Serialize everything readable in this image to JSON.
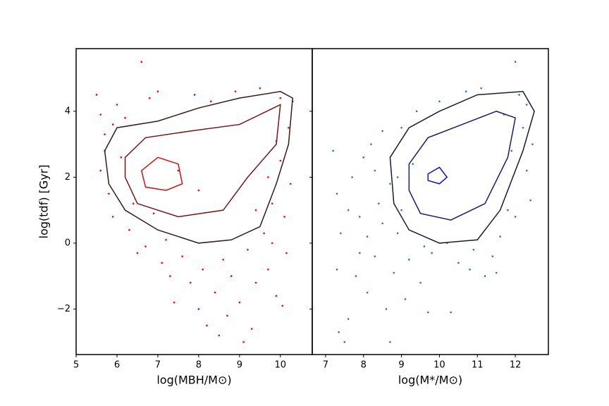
{
  "chart_data": [
    {
      "type": "scatter",
      "xlabel": "log(MBH/M⊙)",
      "ylabel": "log(tdf) [Gyr]",
      "xlim": [
        5,
        10.78
      ],
      "ylim": [
        -3.38,
        5.9
      ],
      "xticks": [
        5,
        6,
        7,
        8,
        9,
        10
      ],
      "yticks": [
        {
          "value": -2,
          "label": "−2"
        },
        0,
        2,
        4
      ],
      "show_ytick_labels": true,
      "points": {
        "color": "#ff0000",
        "x": [
          5.5,
          5.6,
          5.7,
          5.6,
          5.8,
          5.9,
          5.7,
          6.0,
          6.2,
          6.3,
          6.5,
          6.6,
          6.8,
          7.0,
          7.1,
          7.3,
          7.4,
          7.6,
          7.8,
          7.9,
          8.0,
          8.1,
          8.2,
          8.3,
          8.4,
          8.5,
          8.6,
          8.7,
          8.8,
          8.9,
          9.0,
          9.1,
          9.2,
          9.3,
          9.4,
          9.5,
          9.6,
          9.7,
          9.8,
          9.9,
          10.0,
          10.05,
          10.1,
          10.2,
          10.25,
          10.3,
          9.9,
          9.7,
          10.15,
          6.1,
          6.4,
          6.9,
          7.5,
          8.0,
          5.9,
          6.7,
          7.2,
          9.4,
          9.8,
          10.0
        ],
        "y": [
          4.5,
          3.9,
          2.8,
          2.2,
          1.5,
          0.8,
          3.3,
          4.2,
          3.8,
          0.4,
          -0.3,
          5.5,
          4.4,
          4.6,
          -0.6,
          -1.0,
          -1.8,
          -0.4,
          -1.2,
          4.5,
          -2.0,
          -0.8,
          -2.5,
          4.3,
          -1.5,
          -2.8,
          -0.5,
          -2.2,
          -1.0,
          4.6,
          -1.8,
          -3.0,
          -0.2,
          -2.6,
          -1.2,
          4.7,
          0.3,
          -0.8,
          1.2,
          -1.6,
          2.5,
          -1.9,
          0.8,
          3.5,
          1.8,
          4.3,
          3.1,
          2.0,
          -0.3,
          2.6,
          1.2,
          0.9,
          2.2,
          1.6,
          3.6,
          -0.1,
          0.1,
          1.0,
          0.0,
          4.4
        ]
      },
      "contours": [
        {
          "color": "#3a1a1a",
          "x": [
            5.7,
            6.0,
            7.0,
            8.0,
            9.0,
            10.0,
            10.3,
            10.2,
            9.9,
            9.5,
            8.8,
            8.0,
            7.0,
            6.2,
            5.8
          ],
          "y": [
            2.8,
            3.5,
            3.7,
            4.1,
            4.4,
            4.6,
            4.4,
            3.0,
            1.8,
            0.5,
            0.1,
            0.0,
            0.4,
            1.0,
            1.8
          ]
        },
        {
          "color": "#7a1515",
          "x": [
            6.2,
            6.7,
            7.8,
            9.0,
            10.0,
            9.9,
            9.2,
            8.6,
            7.5,
            6.5,
            6.2
          ],
          "y": [
            2.6,
            3.2,
            3.4,
            3.6,
            4.2,
            3.0,
            2.0,
            1.0,
            0.8,
            1.2,
            2.0
          ]
        },
        {
          "color": "#d41010",
          "x": [
            6.6,
            7.0,
            7.5,
            7.6,
            7.2,
            6.7
          ],
          "y": [
            2.2,
            2.6,
            2.4,
            1.8,
            1.6,
            1.7
          ]
        }
      ]
    },
    {
      "type": "scatter",
      "xlabel": "log(M*/M⊙)",
      "xlim": [
        6.65,
        12.87
      ],
      "ylim": [
        -3.38,
        5.9
      ],
      "xticks": [
        7,
        8,
        9,
        10,
        11,
        12
      ],
      "yticks": [
        -2,
        0,
        2,
        4
      ],
      "show_ytick_labels": false,
      "points": {
        "color": "#1f77b4",
        "x": [
          7.2,
          7.3,
          7.4,
          7.3,
          7.35,
          7.5,
          7.6,
          7.7,
          7.8,
          7.9,
          8.0,
          8.1,
          8.2,
          8.3,
          8.4,
          8.5,
          8.6,
          8.7,
          8.8,
          8.9,
          9.0,
          9.1,
          9.2,
          9.4,
          9.5,
          9.7,
          9.8,
          10.0,
          10.3,
          10.5,
          10.7,
          10.9,
          11.1,
          11.2,
          11.4,
          11.6,
          11.8,
          12.0,
          12.1,
          12.2,
          12.3,
          12.4,
          12.45,
          12.0,
          11.9,
          8.3,
          8.7,
          9.3,
          7.6,
          8.1,
          10.2,
          11.5,
          9.0,
          8.9,
          7.9,
          11.7,
          12.3,
          10.8,
          9.6,
          8.5
        ],
        "y": [
          2.8,
          1.5,
          0.3,
          -0.8,
          -2.7,
          -3.0,
          -2.3,
          2.0,
          -1.0,
          0.8,
          2.6,
          -1.5,
          3.0,
          -0.4,
          1.2,
          3.4,
          -2.0,
          -3.0,
          -0.9,
          0.3,
          3.5,
          -1.7,
          -0.5,
          4.0,
          -1.2,
          -2.1,
          -0.3,
          4.3,
          -2.1,
          -0.6,
          4.6,
          -0.2,
          4.7,
          -1.0,
          -0.4,
          0.2,
          1.0,
          5.5,
          4.5,
          3.5,
          2.2,
          1.3,
          3.0,
          0.8,
          2.8,
          2.2,
          1.8,
          2.4,
          1.0,
          0.2,
          0.0,
          -0.9,
          1.0,
          2.0,
          -0.3,
          3.9,
          4.2,
          -0.8,
          -0.1,
          0.6
        ]
      },
      "contours": [
        {
          "color": "#1a1a3a",
          "x": [
            8.7,
            9.2,
            10.0,
            11.0,
            12.2,
            12.5,
            12.2,
            11.6,
            11.0,
            10.0,
            9.2,
            8.8
          ],
          "y": [
            2.6,
            3.5,
            4.0,
            4.5,
            4.6,
            4.0,
            2.8,
            1.0,
            0.1,
            0.0,
            0.4,
            1.2
          ]
        },
        {
          "color": "#1a1a7a",
          "x": [
            9.2,
            9.7,
            10.6,
            11.5,
            12.0,
            11.8,
            11.2,
            10.3,
            9.5,
            9.2
          ],
          "y": [
            2.4,
            3.2,
            3.6,
            4.0,
            3.8,
            2.6,
            1.2,
            0.7,
            0.9,
            1.6
          ]
        },
        {
          "color": "#1010d4",
          "x": [
            9.7,
            10.0,
            10.2,
            10.0,
            9.7
          ],
          "y": [
            2.1,
            2.3,
            2.0,
            1.8,
            1.9
          ]
        }
      ]
    }
  ]
}
